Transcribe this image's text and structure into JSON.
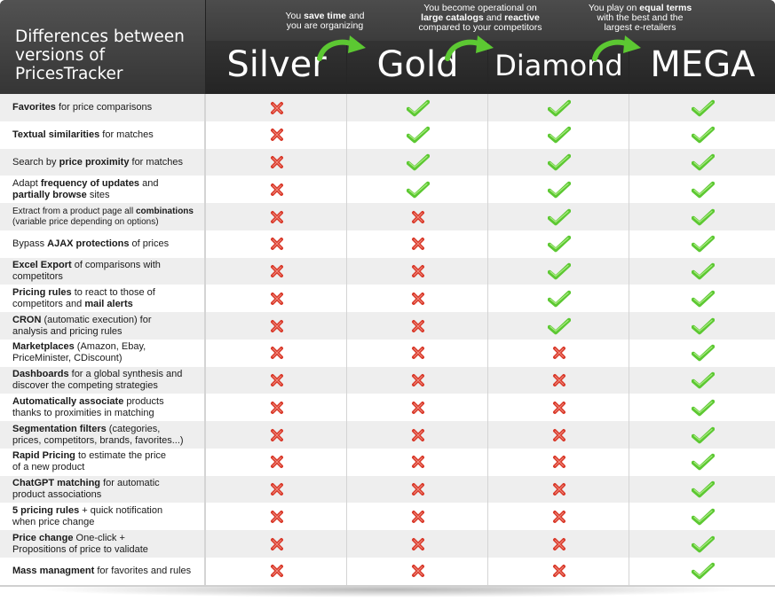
{
  "header": {
    "title_line1": "Differences between",
    "title_line2": "versions of PricesTracker"
  },
  "tiers": [
    {
      "name": "Silver"
    },
    {
      "name": "Gold"
    },
    {
      "name": "Diamond"
    },
    {
      "name": "MEGA"
    }
  ],
  "benefits": {
    "gold": {
      "l1_a": "You ",
      "l1_b": "save time",
      "l1_c": " and",
      "l2": "you are organizing"
    },
    "diamond": {
      "l1": "You become operational on",
      "l2_a": "large catalogs",
      "l2_b": " and ",
      "l2_c": "reactive",
      "l3": "compared to your competitors"
    },
    "mega": {
      "l1_a": "You play on ",
      "l1_b": "equal terms",
      "l2": "with the best and the",
      "l3": "largest e-retailers"
    }
  },
  "colors": {
    "check": "#5cc832",
    "cross": "#d93a2b",
    "header_bg": "#333333"
  },
  "icons": {
    "included": "check-icon",
    "excluded": "cross-icon"
  },
  "features": [
    {
      "parts": [
        [
          "b",
          "Favorites"
        ],
        [
          "n",
          " for price comparisons"
        ]
      ],
      "support": [
        false,
        true,
        true,
        true
      ]
    },
    {
      "parts": [
        [
          "b",
          "Textual similarities"
        ],
        [
          "n",
          " for matches"
        ]
      ],
      "support": [
        false,
        true,
        true,
        true
      ]
    },
    {
      "parts": [
        [
          "n",
          "Search by "
        ],
        [
          "b",
          "price proximity"
        ],
        [
          "n",
          " for matches"
        ]
      ],
      "support": [
        false,
        true,
        true,
        true
      ]
    },
    {
      "parts": [
        [
          "n",
          "Adapt "
        ],
        [
          "b",
          "frequency of updates"
        ],
        [
          "n",
          " and "
        ],
        [
          "br",
          ""
        ],
        [
          "b",
          "partially browse"
        ],
        [
          "n",
          " sites"
        ]
      ],
      "support": [
        false,
        true,
        true,
        true
      ]
    },
    {
      "small": true,
      "parts": [
        [
          "n",
          "Extract from a product page all "
        ],
        [
          "b",
          "combinations"
        ],
        [
          "br",
          ""
        ],
        [
          "n",
          "(variable price depending on options)"
        ]
      ],
      "support": [
        false,
        false,
        true,
        true
      ]
    },
    {
      "parts": [
        [
          "n",
          "Bypass "
        ],
        [
          "b",
          "AJAX protections"
        ],
        [
          "n",
          " of prices"
        ]
      ],
      "support": [
        false,
        false,
        true,
        true
      ]
    },
    {
      "parts": [
        [
          "b",
          "Excel Export"
        ],
        [
          "n",
          " of comparisons with"
        ],
        [
          "br",
          ""
        ],
        [
          "n",
          "competitors"
        ]
      ],
      "support": [
        false,
        false,
        true,
        true
      ]
    },
    {
      "parts": [
        [
          "b",
          "Pricing rules"
        ],
        [
          "n",
          " to react to those of"
        ],
        [
          "br",
          ""
        ],
        [
          "n",
          "competitors and "
        ],
        [
          "b",
          "mail alerts"
        ]
      ],
      "support": [
        false,
        false,
        true,
        true
      ]
    },
    {
      "parts": [
        [
          "b",
          "CRON"
        ],
        [
          "n",
          " (automatic execution) for"
        ],
        [
          "br",
          ""
        ],
        [
          "n",
          "analysis and pricing rules"
        ]
      ],
      "support": [
        false,
        false,
        true,
        true
      ]
    },
    {
      "parts": [
        [
          "b",
          "Marketplaces"
        ],
        [
          "n",
          " (Amazon, Ebay,"
        ],
        [
          "br",
          ""
        ],
        [
          "n",
          "PriceMinister, CDiscount)"
        ]
      ],
      "support": [
        false,
        false,
        false,
        true
      ]
    },
    {
      "parts": [
        [
          "b",
          "Dashboards"
        ],
        [
          "n",
          " for a global synthesis and"
        ],
        [
          "br",
          ""
        ],
        [
          "n",
          "discover the competing strategies"
        ]
      ],
      "support": [
        false,
        false,
        false,
        true
      ]
    },
    {
      "parts": [
        [
          "b",
          "Automatically associate"
        ],
        [
          "n",
          " products"
        ],
        [
          "br",
          ""
        ],
        [
          "n",
          "thanks to proximities in matching"
        ]
      ],
      "support": [
        false,
        false,
        false,
        true
      ]
    },
    {
      "parts": [
        [
          "b",
          "Segmentation filters"
        ],
        [
          "n",
          " (categories,"
        ],
        [
          "br",
          ""
        ],
        [
          "n",
          "prices, competitors, brands, favorites...)"
        ]
      ],
      "support": [
        false,
        false,
        false,
        true
      ]
    },
    {
      "parts": [
        [
          "b",
          "Rapid Pricing"
        ],
        [
          "n",
          " to estimate the price"
        ],
        [
          "br",
          ""
        ],
        [
          "n",
          "of a new product"
        ]
      ],
      "support": [
        false,
        false,
        false,
        true
      ]
    },
    {
      "parts": [
        [
          "b",
          "ChatGPT matching"
        ],
        [
          "n",
          " for automatic"
        ],
        [
          "br",
          ""
        ],
        [
          "n",
          "product associations"
        ]
      ],
      "support": [
        false,
        false,
        false,
        true
      ]
    },
    {
      "parts": [
        [
          "b",
          "5 pricing rules"
        ],
        [
          "n",
          " + quick notification"
        ],
        [
          "br",
          ""
        ],
        [
          "n",
          "when price change"
        ]
      ],
      "support": [
        false,
        false,
        false,
        true
      ]
    },
    {
      "parts": [
        [
          "b",
          "Price change"
        ],
        [
          "n",
          " One-click +"
        ],
        [
          "br",
          ""
        ],
        [
          "n",
          "Propositions of price to validate"
        ]
      ],
      "support": [
        false,
        false,
        false,
        true
      ]
    },
    {
      "parts": [
        [
          "b",
          "Mass managment"
        ],
        [
          "n",
          " for favorites and rules"
        ]
      ],
      "support": [
        false,
        false,
        false,
        true
      ]
    }
  ]
}
